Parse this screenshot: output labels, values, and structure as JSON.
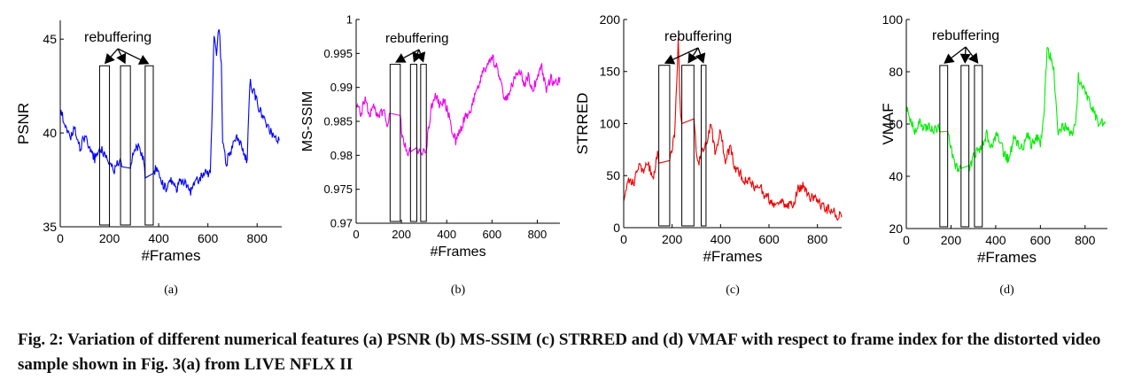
{
  "caption": "Fig. 2: Variation of different numerical features (a) PSNR (b) MS-SSIM (c) STRRED and (d) VMAF with respect to frame index for the distorted video sample shown in Fig. 3(a) from LIVE NFLX II",
  "chart_data": [
    {
      "type": "line",
      "sublabel": "(a)",
      "xlabel": "#Frames",
      "ylabel": "PSNR",
      "xlim": [
        0,
        900
      ],
      "ylim": [
        35,
        46
      ],
      "xticks": [
        0,
        200,
        400,
        600,
        800
      ],
      "yticks": [
        35,
        40,
        45
      ],
      "color": "#0000ff",
      "annotation": "rebuffering",
      "rebuffer_intervals": [
        [
          160,
          200
        ],
        [
          245,
          285
        ],
        [
          345,
          378
        ]
      ],
      "series": [
        {
          "x": [
            0,
            20,
            40,
            60,
            80,
            100,
            120,
            140,
            160,
            200,
            220,
            240,
            250,
            285,
            300,
            320,
            340,
            345,
            378,
            390,
            410,
            430,
            450,
            470,
            490,
            510,
            530,
            550,
            570,
            590,
            610,
            625,
            635,
            645,
            655,
            660,
            675,
            700,
            720,
            740,
            760,
            770,
            790,
            810,
            830,
            850,
            870,
            890
          ],
          "y": [
            41.2,
            40.5,
            39.6,
            40.3,
            39.2,
            39.8,
            39.3,
            38.6,
            39.2,
            38.4,
            38.0,
            38.6,
            38.2,
            38.2,
            39.0,
            39.3,
            38.5,
            37.6,
            37.6,
            38.2,
            37.5,
            37.0,
            37.6,
            37.0,
            37.5,
            37.2,
            36.9,
            37.4,
            37.6,
            37.9,
            37.8,
            45.1,
            44.3,
            45.7,
            43.5,
            39.6,
            38.4,
            39.3,
            39.8,
            39.1,
            38.5,
            42.7,
            42.1,
            41.2,
            40.6,
            40.2,
            39.8,
            39.6
          ]
        }
      ]
    },
    {
      "type": "line",
      "sublabel": "(b)",
      "xlabel": "#Frames",
      "ylabel": "MS-SSIM",
      "xlim": [
        0,
        900
      ],
      "ylim": [
        0.97,
        1
      ],
      "xticks": [
        0,
        200,
        400,
        600,
        800
      ],
      "yticks": [
        0.97,
        0.975,
        0.98,
        0.985,
        0.99,
        0.995,
        1
      ],
      "tick_labels": [
        "0.97",
        "0.975",
        "0.98",
        "0.985",
        "0.99",
        "0.995",
        "1"
      ],
      "color": "#ee00ee",
      "annotation": "rebuffering",
      "rebuffer_intervals": [
        [
          150,
          195
        ],
        [
          240,
          268
        ],
        [
          285,
          310
        ]
      ],
      "series": [
        {
          "x": [
            0,
            20,
            40,
            60,
            80,
            100,
            120,
            140,
            150,
            195,
            200,
            220,
            230,
            240,
            268,
            285,
            310,
            330,
            350,
            370,
            390,
            410,
            420,
            440,
            460,
            480,
            500,
            520,
            540,
            560,
            580,
            600,
            620,
            640,
            660,
            680,
            700,
            720,
            740,
            760,
            780,
            800,
            820,
            840,
            860,
            880,
            900
          ],
          "y": [
            0.9875,
            0.986,
            0.9882,
            0.986,
            0.987,
            0.9855,
            0.9868,
            0.9845,
            0.9862,
            0.9862,
            0.983,
            0.981,
            0.9805,
            0.9805,
            0.9805,
            0.9805,
            0.981,
            0.9868,
            0.9888,
            0.9872,
            0.988,
            0.986,
            0.9842,
            0.9822,
            0.9838,
            0.9855,
            0.9862,
            0.988,
            0.9905,
            0.992,
            0.9938,
            0.9945,
            0.993,
            0.9905,
            0.988,
            0.9895,
            0.9915,
            0.9928,
            0.9905,
            0.9915,
            0.9898,
            0.9912,
            0.993,
            0.9895,
            0.9912,
            0.9905,
            0.9915
          ]
        }
      ]
    },
    {
      "type": "line",
      "sublabel": "(c)",
      "xlabel": "#Frames",
      "ylabel": "STRRED",
      "xlim": [
        0,
        900
      ],
      "ylim": [
        0,
        200
      ],
      "xticks": [
        0,
        200,
        400,
        600,
        800
      ],
      "yticks": [
        0,
        50,
        100,
        150,
        200
      ],
      "color": "#ee0000",
      "annotation": "rebuffering",
      "rebuffer_intervals": [
        [
          145,
          190
        ],
        [
          240,
          290
        ],
        [
          320,
          340
        ]
      ],
      "series": [
        {
          "x": [
            0,
            20,
            40,
            60,
            80,
            100,
            120,
            140,
            145,
            190,
            210,
            225,
            235,
            240,
            290,
            305,
            320,
            340,
            360,
            380,
            400,
            420,
            440,
            460,
            480,
            500,
            520,
            540,
            560,
            580,
            600,
            620,
            640,
            660,
            680,
            700,
            720,
            740,
            760,
            780,
            800,
            820,
            840,
            860,
            880,
            900
          ],
          "y": [
            30,
            45,
            42,
            58,
            55,
            62,
            48,
            70,
            62,
            62,
            90,
            178,
            110,
            100,
            100,
            60,
            70,
            82,
            98,
            70,
            95,
            62,
            78,
            58,
            52,
            45,
            48,
            38,
            42,
            30,
            28,
            24,
            26,
            22,
            20,
            22,
            38,
            40,
            32,
            28,
            25,
            20,
            18,
            16,
            12,
            10
          ]
        }
      ]
    },
    {
      "type": "line",
      "sublabel": "(d)",
      "xlabel": "#Frames",
      "ylabel": "VMAF",
      "xlim": [
        0,
        900
      ],
      "ylim": [
        20,
        100
      ],
      "xticks": [
        0,
        200,
        400,
        600,
        800
      ],
      "yticks": [
        20,
        40,
        60,
        80,
        100
      ],
      "color": "#00ee00",
      "annotation": "rebuffering",
      "rebuffer_intervals": [
        [
          150,
          185
        ],
        [
          245,
          280
        ],
        [
          305,
          340
        ]
      ],
      "series": [
        {
          "x": [
            0,
            20,
            40,
            60,
            80,
            100,
            120,
            140,
            150,
            185,
            200,
            220,
            245,
            280,
            305,
            340,
            360,
            380,
            400,
            420,
            440,
            460,
            480,
            500,
            520,
            540,
            560,
            580,
            600,
            615,
            630,
            650,
            660,
            680,
            700,
            720,
            740,
            760,
            770,
            790,
            810,
            830,
            850,
            870,
            890
          ],
          "y": [
            66,
            61,
            57,
            62,
            58,
            60,
            57,
            59,
            57,
            57,
            51,
            43,
            43,
            43,
            48,
            52,
            56,
            51,
            56,
            53,
            48,
            46,
            55,
            53,
            50,
            56,
            52,
            55,
            53,
            63,
            88,
            85,
            80,
            55,
            60,
            58,
            56,
            62,
            78,
            74,
            70,
            66,
            62,
            60,
            61
          ]
        }
      ]
    }
  ]
}
